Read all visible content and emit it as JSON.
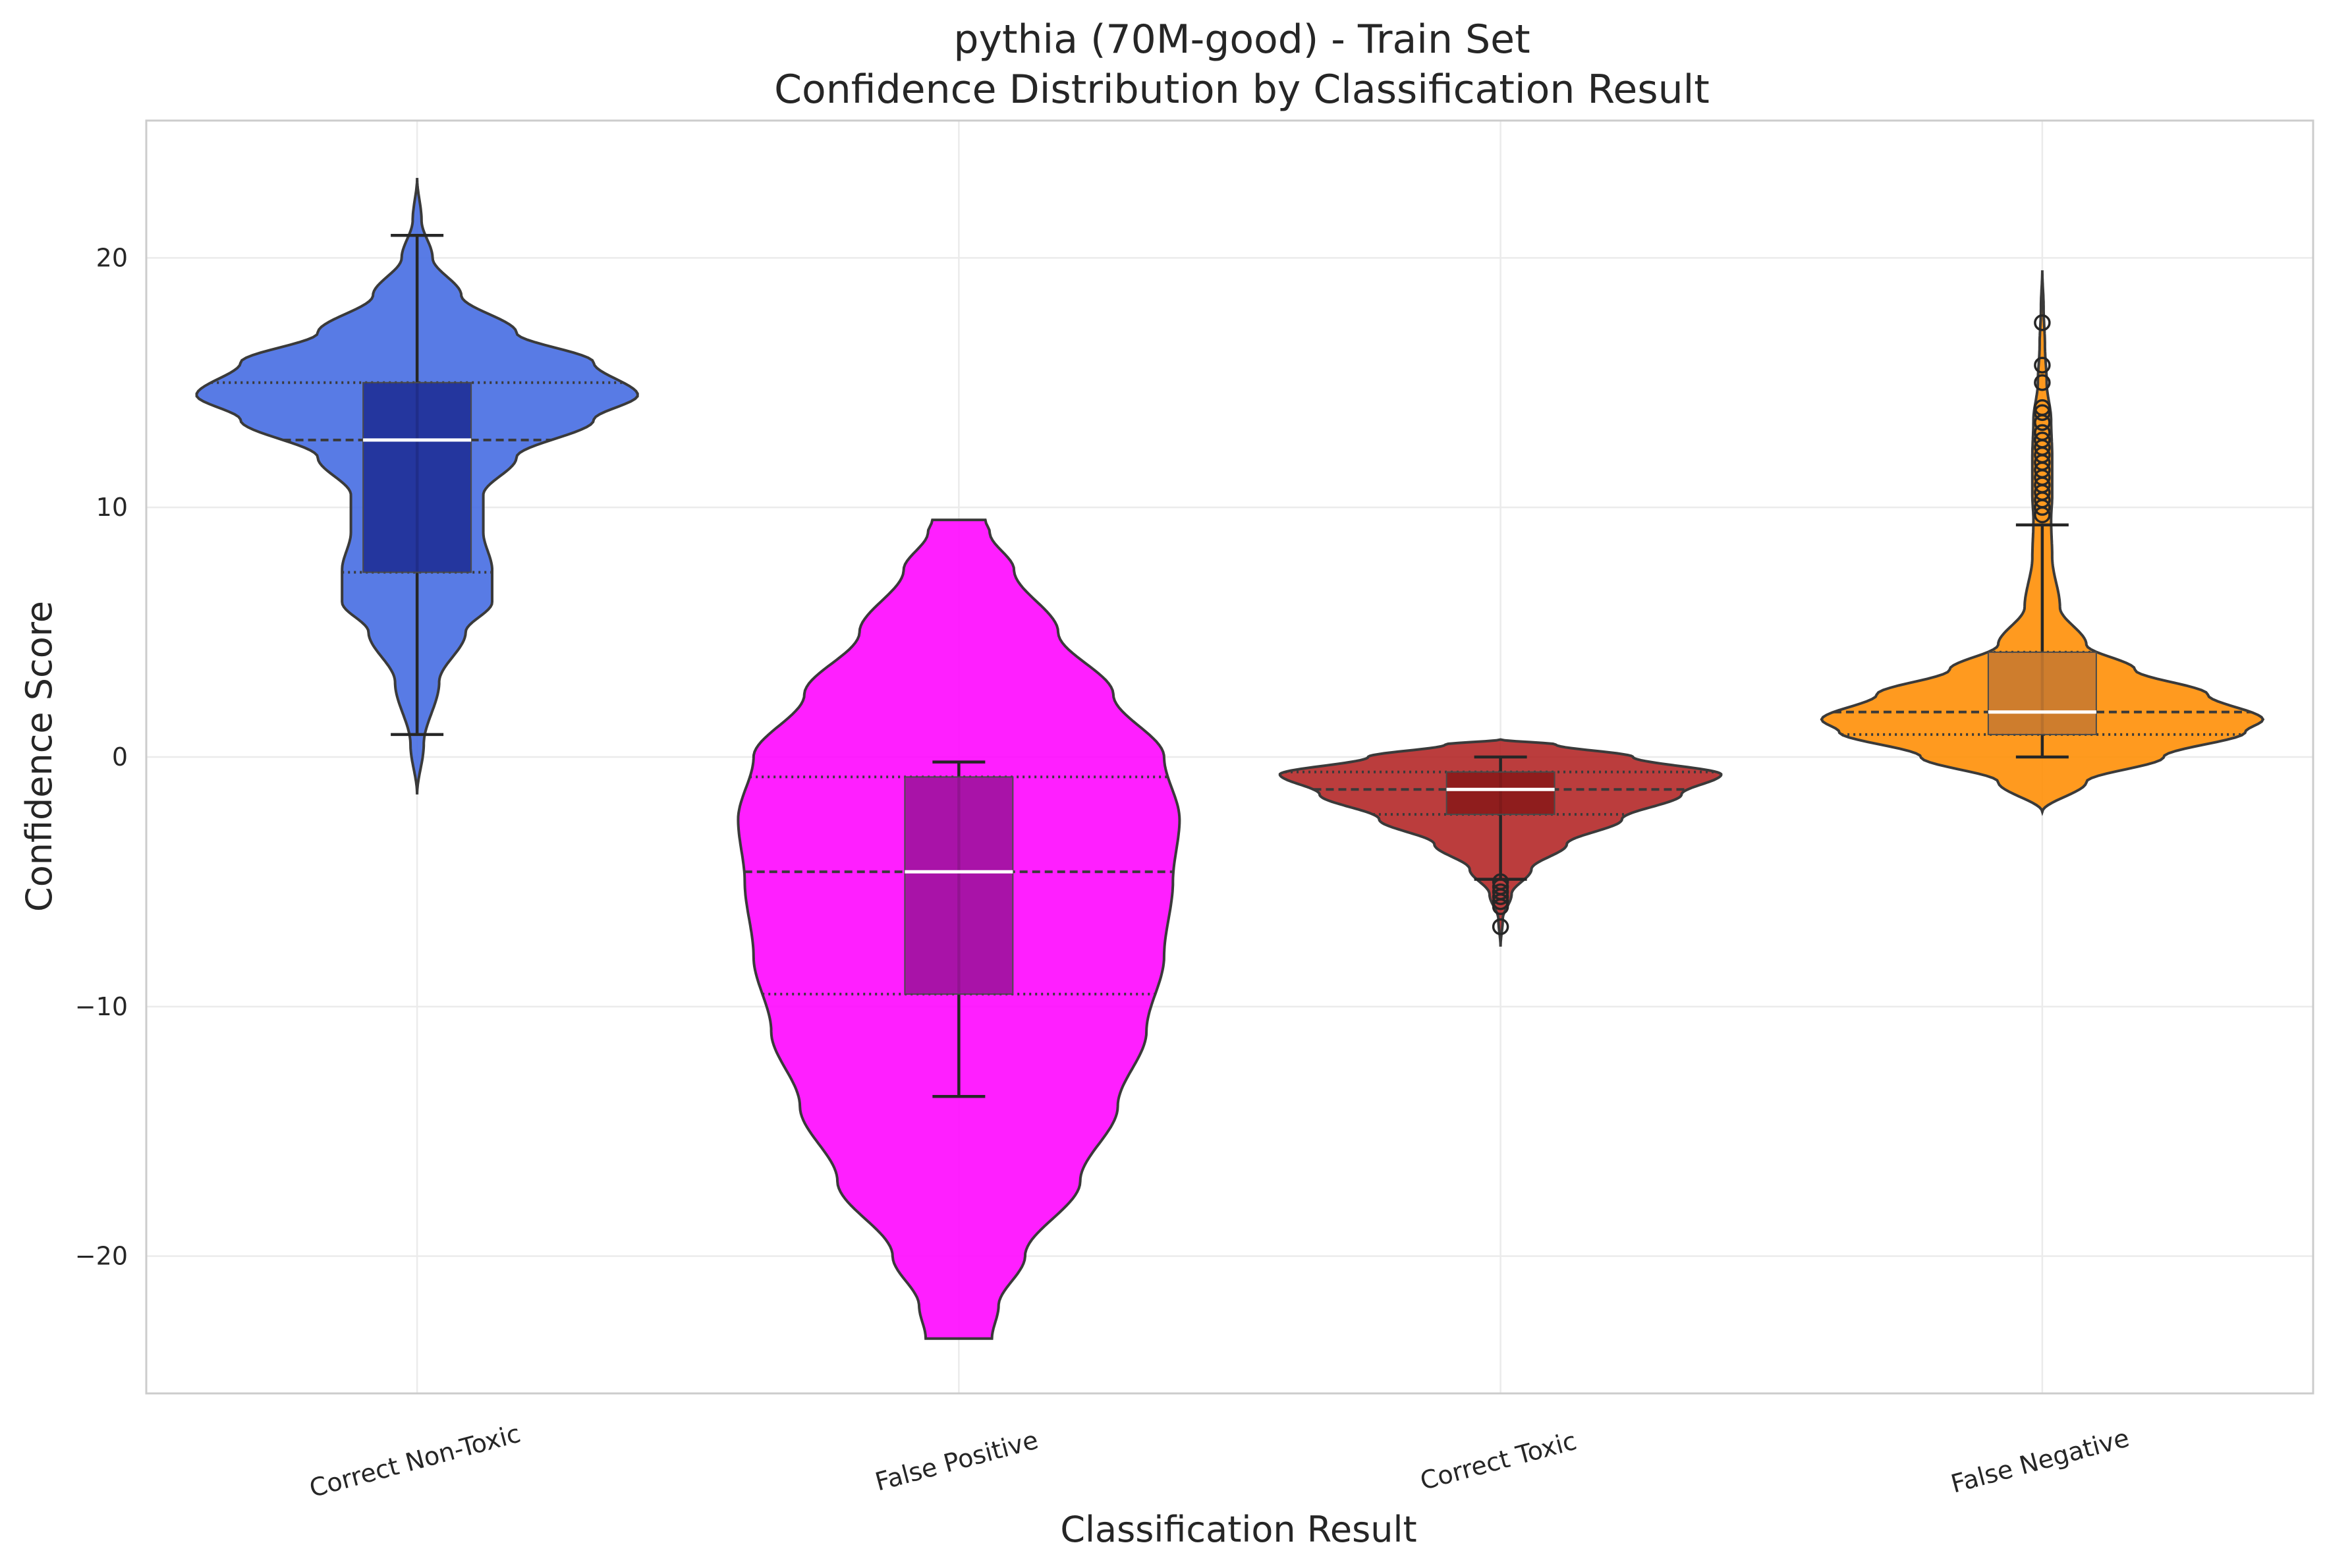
{
  "chart_data": {
    "type": "violin",
    "title": "pythia (70M-good) - Train Set",
    "subtitle": "Confidence Distribution by Classification Result",
    "xlabel": "Classification Result",
    "ylabel": "Confidence Score",
    "ylim": [
      -25.5,
      25.5
    ],
    "yticks": [
      -20,
      -10,
      0,
      10,
      20
    ],
    "ytick_labels": [
      "−20",
      "−10",
      "0",
      "10",
      "20"
    ],
    "grid": true,
    "categories": [
      "Correct Non-Toxic",
      "False Positive",
      "Correct Toxic",
      "False Negative"
    ],
    "series": [
      {
        "category": "Correct Non-Toxic",
        "color": "#4169e1",
        "box_color": "#1f2f96",
        "range": [
          -1.5,
          23.2
        ],
        "density": [
          [
            -1.5,
            0.0
          ],
          [
            0.5,
            0.03
          ],
          [
            3.0,
            0.1
          ],
          [
            5.0,
            0.22
          ],
          [
            6.2,
            0.34
          ],
          [
            7.5,
            0.34
          ],
          [
            9.0,
            0.3
          ],
          [
            10.5,
            0.3
          ],
          [
            12.0,
            0.45
          ],
          [
            13.5,
            0.8
          ],
          [
            14.5,
            1.0
          ],
          [
            15.8,
            0.8
          ],
          [
            17.0,
            0.45
          ],
          [
            18.5,
            0.2
          ],
          [
            20.0,
            0.07
          ],
          [
            21.5,
            0.02
          ],
          [
            23.2,
            0.0
          ]
        ],
        "quartiles": [
          7.4,
          12.7,
          15.0
        ],
        "whiskers": [
          0.9,
          20.9
        ],
        "outliers": []
      },
      {
        "category": "False Positive",
        "color": "#ff00ff",
        "box_color": "#a0129e",
        "range": [
          -23.3,
          9.5
        ],
        "density": [
          [
            -23.3,
            0.15
          ],
          [
            -22.0,
            0.18
          ],
          [
            -20.0,
            0.3
          ],
          [
            -17.0,
            0.55
          ],
          [
            -14.0,
            0.72
          ],
          [
            -11.0,
            0.85
          ],
          [
            -8.0,
            0.93
          ],
          [
            -5.0,
            0.97
          ],
          [
            -2.5,
            1.0
          ],
          [
            0.0,
            0.93
          ],
          [
            2.5,
            0.7
          ],
          [
            5.0,
            0.45
          ],
          [
            7.5,
            0.25
          ],
          [
            9.0,
            0.14
          ],
          [
            9.5,
            0.12
          ]
        ],
        "quartiles": [
          -9.5,
          -4.6,
          -0.8
        ],
        "whiskers": [
          -13.6,
          -0.2
        ],
        "outliers": []
      },
      {
        "category": "Correct Toxic",
        "color": "#b22222",
        "box_color": "#8b1a1a",
        "range": [
          -7.6,
          0.7
        ],
        "density": [
          [
            -7.6,
            0.0
          ],
          [
            -6.5,
            0.01
          ],
          [
            -5.5,
            0.05
          ],
          [
            -4.5,
            0.14
          ],
          [
            -3.5,
            0.3
          ],
          [
            -2.5,
            0.55
          ],
          [
            -1.5,
            0.82
          ],
          [
            -0.7,
            1.0
          ],
          [
            0.0,
            0.6
          ],
          [
            0.5,
            0.25
          ],
          [
            0.7,
            0.0
          ]
        ],
        "quartiles": [
          -2.3,
          -1.3,
          -0.6
        ],
        "whiskers": [
          -4.9,
          0.0
        ],
        "outliers": [
          -5.0,
          -5.2,
          -5.4,
          -5.6,
          -5.8,
          -6.0,
          -6.8
        ]
      },
      {
        "category": "False Negative",
        "color": "#ff8c00",
        "box_color": "#c97a2f",
        "range": [
          -2.2,
          19.5
        ],
        "density": [
          [
            -2.2,
            0.0
          ],
          [
            -1.0,
            0.2
          ],
          [
            0.0,
            0.55
          ],
          [
            1.0,
            0.92
          ],
          [
            1.5,
            1.0
          ],
          [
            2.5,
            0.75
          ],
          [
            3.5,
            0.42
          ],
          [
            4.5,
            0.2
          ],
          [
            6.0,
            0.08
          ],
          [
            8.0,
            0.045
          ],
          [
            9.5,
            0.04
          ],
          [
            10.5,
            0.045
          ],
          [
            12.0,
            0.045
          ],
          [
            13.5,
            0.04
          ],
          [
            15.0,
            0.02
          ],
          [
            16.5,
            0.012
          ],
          [
            18.0,
            0.006
          ],
          [
            19.5,
            0.0
          ]
        ],
        "quartiles": [
          0.9,
          1.8,
          4.2
        ],
        "whiskers": [
          0.0,
          9.3
        ],
        "outliers": [
          9.7,
          10.0,
          10.3,
          10.6,
          10.9,
          11.2,
          11.5,
          11.8,
          12.1,
          12.4,
          12.7,
          13.0,
          13.4,
          13.8,
          14.0,
          15.0,
          15.7,
          17.4
        ]
      }
    ]
  }
}
